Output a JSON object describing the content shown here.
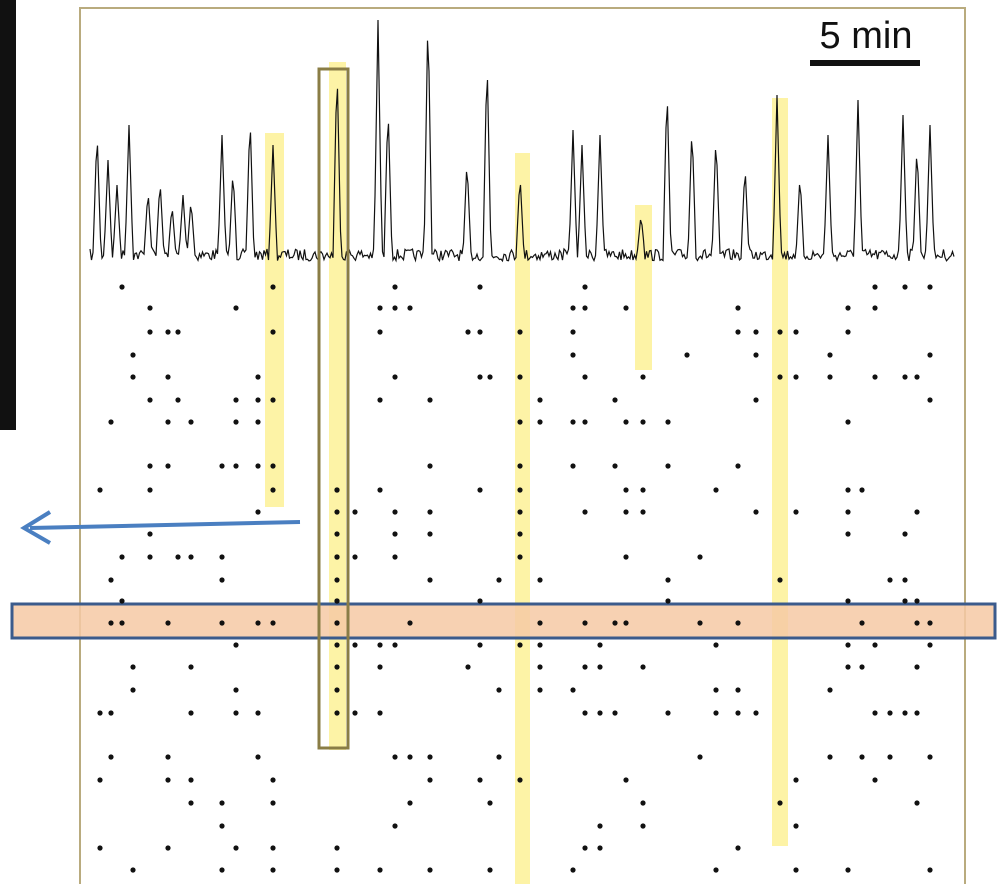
{
  "scale_bar": {
    "label": "5 min"
  }
}
